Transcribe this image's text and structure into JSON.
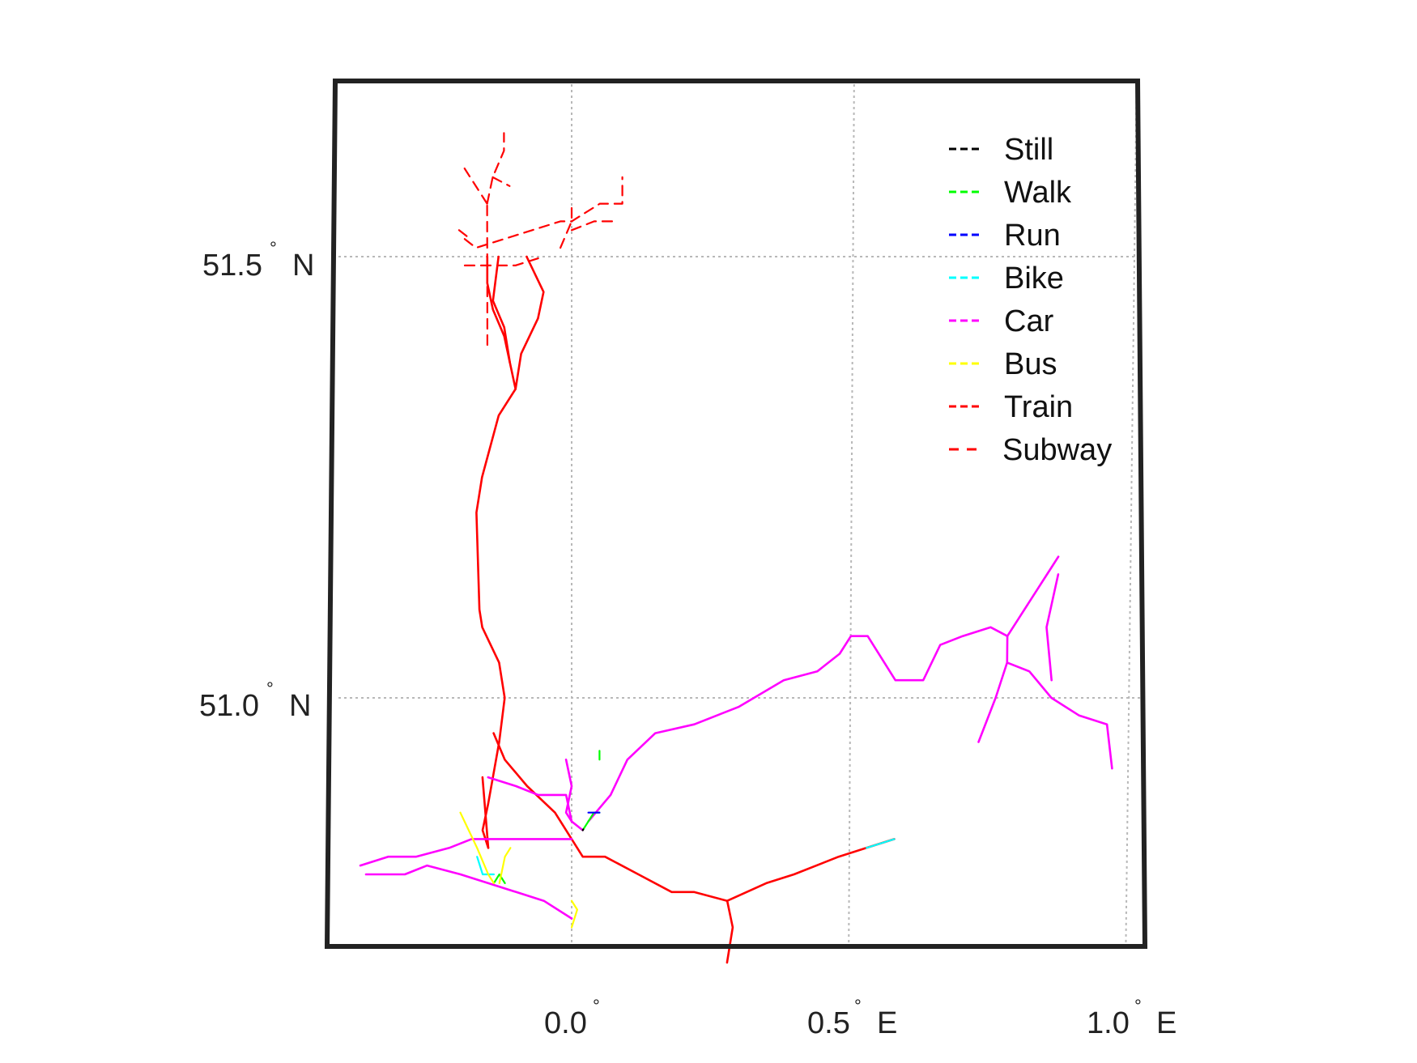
{
  "map": {
    "grid_lon": [
      0.0,
      0.5,
      1.0
    ],
    "grid_lat": [
      51.0,
      51.5
    ],
    "x_ticks": [
      {
        "value": "0.0",
        "degree": "°",
        "hemisphere": ""
      },
      {
        "value": "0.5",
        "degree": "°",
        "hemisphere": "E"
      },
      {
        "value": "1.0",
        "degree": "°",
        "hemisphere": "E"
      }
    ],
    "y_ticks": [
      {
        "value": "51.5",
        "degree": "°",
        "hemisphere": "N"
      },
      {
        "value": "51.0",
        "degree": "°",
        "hemisphere": "N"
      }
    ],
    "legend": [
      {
        "label": "Still",
        "color": "#000000",
        "dash": "short"
      },
      {
        "label": "Walk",
        "color": "#00ff00",
        "dash": "short"
      },
      {
        "label": "Run",
        "color": "#0000ff",
        "dash": "short"
      },
      {
        "label": "Bike",
        "color": "#00ffff",
        "dash": "short"
      },
      {
        "label": "Car",
        "color": "#ff00ff",
        "dash": "short"
      },
      {
        "label": "Bus",
        "color": "#ffff00",
        "dash": "short"
      },
      {
        "label": "Train",
        "color": "#ff0000",
        "dash": "short"
      },
      {
        "label": "Subway",
        "color": "#ff0000",
        "dash": "long"
      }
    ],
    "legend_placement": "top-right",
    "grid": true,
    "frame_color": "#222222",
    "tracks": [
      {
        "mode": "Subway",
        "points": [
          [
            -0.19,
            51.52
          ],
          [
            -0.17,
            51.51
          ],
          [
            -0.12,
            51.52
          ],
          [
            -0.07,
            51.53
          ],
          [
            -0.02,
            51.54
          ],
          [
            0.0,
            51.54
          ],
          [
            0.05,
            51.56
          ],
          [
            0.09,
            51.56
          ],
          [
            0.09,
            51.59
          ]
        ]
      },
      {
        "mode": "Subway",
        "points": [
          [
            -0.19,
            51.49
          ],
          [
            -0.15,
            51.49
          ],
          [
            -0.1,
            51.49
          ],
          [
            -0.05,
            51.5
          ]
        ]
      },
      {
        "mode": "Subway",
        "points": [
          [
            -0.2,
            51.53
          ],
          [
            -0.18,
            51.52
          ]
        ]
      },
      {
        "mode": "Subway",
        "points": [
          [
            -0.15,
            51.4
          ],
          [
            -0.15,
            51.48
          ],
          [
            -0.15,
            51.56
          ]
        ]
      },
      {
        "mode": "Subway",
        "points": [
          [
            -0.15,
            51.56
          ],
          [
            -0.19,
            51.6
          ]
        ]
      },
      {
        "mode": "Subway",
        "points": [
          [
            -0.15,
            51.56
          ],
          [
            -0.14,
            51.59
          ],
          [
            -0.12,
            51.62
          ],
          [
            -0.12,
            51.64
          ]
        ]
      },
      {
        "mode": "Subway",
        "points": [
          [
            -0.14,
            51.59
          ],
          [
            -0.11,
            51.58
          ]
        ]
      },
      {
        "mode": "Subway",
        "points": [
          [
            -0.02,
            51.51
          ],
          [
            0.0,
            51.54
          ],
          [
            0.0,
            51.56
          ]
        ]
      },
      {
        "mode": "Subway",
        "points": [
          [
            0.0,
            51.53
          ],
          [
            0.04,
            51.54
          ],
          [
            0.08,
            51.54
          ]
        ]
      },
      {
        "mode": "Train",
        "points": [
          [
            -0.15,
            51.5
          ],
          [
            -0.15,
            51.47
          ],
          [
            -0.14,
            51.44
          ],
          [
            -0.12,
            51.41
          ],
          [
            -0.11,
            51.38
          ],
          [
            -0.1,
            51.35
          ],
          [
            -0.13,
            51.32
          ],
          [
            -0.16,
            51.25
          ],
          [
            -0.17,
            51.21
          ],
          [
            -0.165,
            51.1
          ],
          [
            -0.16,
            51.08
          ],
          [
            -0.13,
            51.04
          ],
          [
            -0.12,
            51.0
          ],
          [
            -0.13,
            50.95
          ],
          [
            -0.15,
            50.88
          ],
          [
            -0.16,
            50.85
          ],
          [
            -0.15,
            50.83
          ]
        ]
      },
      {
        "mode": "Train",
        "points": [
          [
            -0.13,
            51.5
          ],
          [
            -0.14,
            51.45
          ],
          [
            -0.12,
            51.42
          ],
          [
            -0.11,
            51.38
          ]
        ]
      },
      {
        "mode": "Train",
        "points": [
          [
            -0.08,
            51.5
          ],
          [
            -0.05,
            51.46
          ],
          [
            -0.06,
            51.43
          ],
          [
            -0.09,
            51.39
          ],
          [
            -0.1,
            51.35
          ]
        ]
      },
      {
        "mode": "Train",
        "points": [
          [
            -0.14,
            50.96
          ],
          [
            -0.12,
            50.93
          ],
          [
            -0.08,
            50.9
          ],
          [
            -0.03,
            50.87
          ],
          [
            0.0,
            50.84
          ],
          [
            0.02,
            50.82
          ],
          [
            0.06,
            50.82
          ],
          [
            0.12,
            50.8
          ],
          [
            0.18,
            50.78
          ],
          [
            0.22,
            50.78
          ],
          [
            0.28,
            50.77
          ],
          [
            0.35,
            50.79
          ],
          [
            0.4,
            50.8
          ],
          [
            0.48,
            50.82
          ],
          [
            0.53,
            50.83
          ],
          [
            0.58,
            50.84
          ]
        ]
      },
      {
        "mode": "Train",
        "points": [
          [
            0.28,
            50.77
          ],
          [
            0.29,
            50.74
          ],
          [
            0.28,
            50.7
          ]
        ]
      },
      {
        "mode": "Train",
        "points": [
          [
            -0.16,
            50.91
          ],
          [
            -0.15,
            50.83
          ]
        ]
      },
      {
        "mode": "Car",
        "points": [
          [
            -0.38,
            50.81
          ],
          [
            -0.33,
            50.82
          ],
          [
            -0.28,
            50.82
          ],
          [
            -0.22,
            50.83
          ],
          [
            -0.18,
            50.84
          ],
          [
            -0.12,
            50.84
          ],
          [
            -0.06,
            50.84
          ],
          [
            0.0,
            50.84
          ]
        ]
      },
      {
        "mode": "Car",
        "points": [
          [
            -0.37,
            50.8
          ],
          [
            -0.3,
            50.8
          ],
          [
            -0.26,
            50.81
          ],
          [
            -0.2,
            50.8
          ],
          [
            -0.15,
            50.79
          ],
          [
            -0.1,
            50.78
          ],
          [
            -0.05,
            50.77
          ],
          [
            0.0,
            50.75
          ]
        ]
      },
      {
        "mode": "Car",
        "points": [
          [
            -0.15,
            50.91
          ],
          [
            -0.1,
            50.9
          ],
          [
            -0.06,
            50.89
          ],
          [
            -0.01,
            50.89
          ],
          [
            0.0,
            50.86
          ],
          [
            0.02,
            50.85
          ]
        ]
      },
      {
        "mode": "Car",
        "points": [
          [
            -0.01,
            50.93
          ],
          [
            0.0,
            50.9
          ],
          [
            -0.01,
            50.87
          ],
          [
            0.0,
            50.86
          ]
        ]
      },
      {
        "mode": "Car",
        "points": [
          [
            0.03,
            50.86
          ],
          [
            0.07,
            50.89
          ],
          [
            0.1,
            50.93
          ],
          [
            0.15,
            50.96
          ],
          [
            0.22,
            50.97
          ],
          [
            0.3,
            50.99
          ],
          [
            0.38,
            51.02
          ],
          [
            0.44,
            51.03
          ],
          [
            0.48,
            51.05
          ],
          [
            0.5,
            51.07
          ],
          [
            0.53,
            51.07
          ],
          [
            0.58,
            51.02
          ],
          [
            0.63,
            51.02
          ],
          [
            0.66,
            51.06
          ],
          [
            0.7,
            51.07
          ],
          [
            0.75,
            51.08
          ],
          [
            0.78,
            51.07
          ]
        ]
      },
      {
        "mode": "Car",
        "points": [
          [
            0.78,
            51.07
          ],
          [
            0.8,
            51.09
          ],
          [
            0.83,
            51.12
          ],
          [
            0.86,
            51.15
          ],
          [
            0.87,
            51.16
          ]
        ]
      },
      {
        "mode": "Car",
        "points": [
          [
            0.78,
            51.07
          ],
          [
            0.78,
            51.04
          ],
          [
            0.76,
            51.0
          ],
          [
            0.73,
            50.95
          ]
        ]
      },
      {
        "mode": "Car",
        "points": [
          [
            0.78,
            51.04
          ],
          [
            0.82,
            51.03
          ],
          [
            0.86,
            51.0
          ],
          [
            0.91,
            50.98
          ],
          [
            0.96,
            50.97
          ],
          [
            0.97,
            50.92
          ]
        ]
      },
      {
        "mode": "Car",
        "points": [
          [
            0.87,
            51.14
          ],
          [
            0.85,
            51.08
          ],
          [
            0.86,
            51.02
          ]
        ]
      },
      {
        "mode": "Walk",
        "points": [
          [
            0.02,
            50.85
          ],
          [
            0.03,
            50.86
          ],
          [
            0.04,
            50.87
          ],
          [
            0.05,
            50.87
          ]
        ]
      },
      {
        "mode": "Walk",
        "points": [
          [
            0.05,
            50.94
          ],
          [
            0.05,
            50.93
          ]
        ]
      },
      {
        "mode": "Walk",
        "points": [
          [
            -0.14,
            50.79
          ],
          [
            -0.13,
            50.8
          ],
          [
            -0.12,
            50.79
          ]
        ]
      },
      {
        "mode": "Run",
        "points": [
          [
            0.03,
            50.87
          ],
          [
            0.05,
            50.87
          ]
        ]
      },
      {
        "mode": "Bike",
        "points": [
          [
            -0.17,
            50.82
          ],
          [
            -0.16,
            50.8
          ],
          [
            -0.14,
            50.8
          ]
        ]
      },
      {
        "mode": "Bike",
        "points": [
          [
            0.53,
            50.83
          ],
          [
            0.58,
            50.84
          ]
        ]
      },
      {
        "mode": "Bus",
        "points": [
          [
            -0.2,
            50.87
          ],
          [
            -0.17,
            50.83
          ],
          [
            -0.15,
            50.8
          ],
          [
            -0.14,
            50.79
          ]
        ]
      },
      {
        "mode": "Bus",
        "points": [
          [
            -0.13,
            50.79
          ],
          [
            -0.12,
            50.82
          ],
          [
            -0.11,
            50.83
          ]
        ]
      },
      {
        "mode": "Bus",
        "points": [
          [
            0.0,
            50.74
          ],
          [
            0.01,
            50.76
          ],
          [
            0.0,
            50.77
          ]
        ]
      },
      {
        "mode": "Still",
        "points": [
          [
            0.02,
            50.85
          ],
          [
            0.021,
            50.851
          ]
        ]
      }
    ]
  }
}
